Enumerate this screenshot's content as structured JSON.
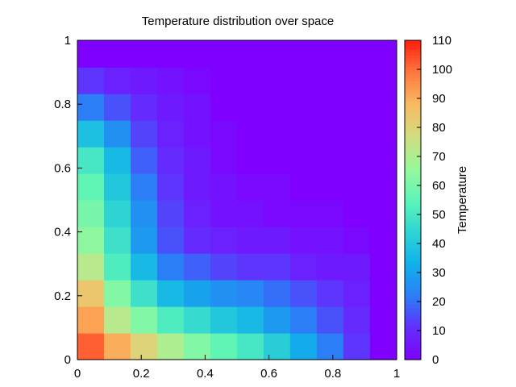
{
  "chart_data": {
    "type": "heatmap",
    "title": "Temperature distribution over space",
    "xlabel": "",
    "ylabel": "",
    "colorbar_label": "Temperature",
    "xlim": [
      0,
      1
    ],
    "ylim": [
      0,
      1
    ],
    "clim": [
      0,
      110
    ],
    "colormap": "rainbow",
    "grid": false,
    "x_ticks": [
      "0",
      "0.2",
      "0.4",
      "0.6",
      "0.8",
      "1"
    ],
    "y_ticks": [
      "0",
      "0.2",
      "0.4",
      "0.6",
      "0.8",
      "1"
    ],
    "colorbar_ticks": [
      "0",
      "10",
      "20",
      "30",
      "40",
      "50",
      "60",
      "70",
      "80",
      "90",
      "100",
      "110"
    ],
    "row_order": "bottom-to-top (y = 0 first)",
    "x_step": 0.0833,
    "y_step": 0.0833,
    "values": [
      [
        102,
        90,
        80,
        70,
        62,
        56,
        50,
        42,
        32,
        22,
        12,
        0
      ],
      [
        92,
        72,
        62,
        52,
        46,
        40,
        36,
        28,
        22,
        16,
        10,
        0
      ],
      [
        84,
        62,
        48,
        36,
        30,
        26,
        24,
        20,
        16,
        12,
        8,
        0
      ],
      [
        72,
        52,
        36,
        22,
        18,
        14,
        12,
        12,
        8,
        6,
        6,
        0
      ],
      [
        64,
        48,
        28,
        16,
        10,
        8,
        6,
        6,
        4,
        4,
        2,
        0
      ],
      [
        60,
        44,
        26,
        14,
        8,
        4,
        4,
        2,
        2,
        2,
        0,
        0
      ],
      [
        56,
        40,
        22,
        12,
        6,
        4,
        2,
        2,
        0,
        0,
        0,
        0
      ],
      [
        50,
        36,
        18,
        10,
        6,
        2,
        0,
        0,
        0,
        0,
        0,
        0
      ],
      [
        38,
        26,
        14,
        8,
        4,
        2,
        0,
        0,
        0,
        0,
        0,
        0
      ],
      [
        22,
        16,
        10,
        6,
        4,
        0,
        0,
        0,
        0,
        0,
        0,
        0
      ],
      [
        12,
        8,
        6,
        4,
        2,
        0,
        0,
        0,
        0,
        0,
        0,
        0
      ],
      [
        0,
        0,
        0,
        0,
        0,
        0,
        0,
        0,
        0,
        0,
        0,
        0
      ]
    ]
  }
}
